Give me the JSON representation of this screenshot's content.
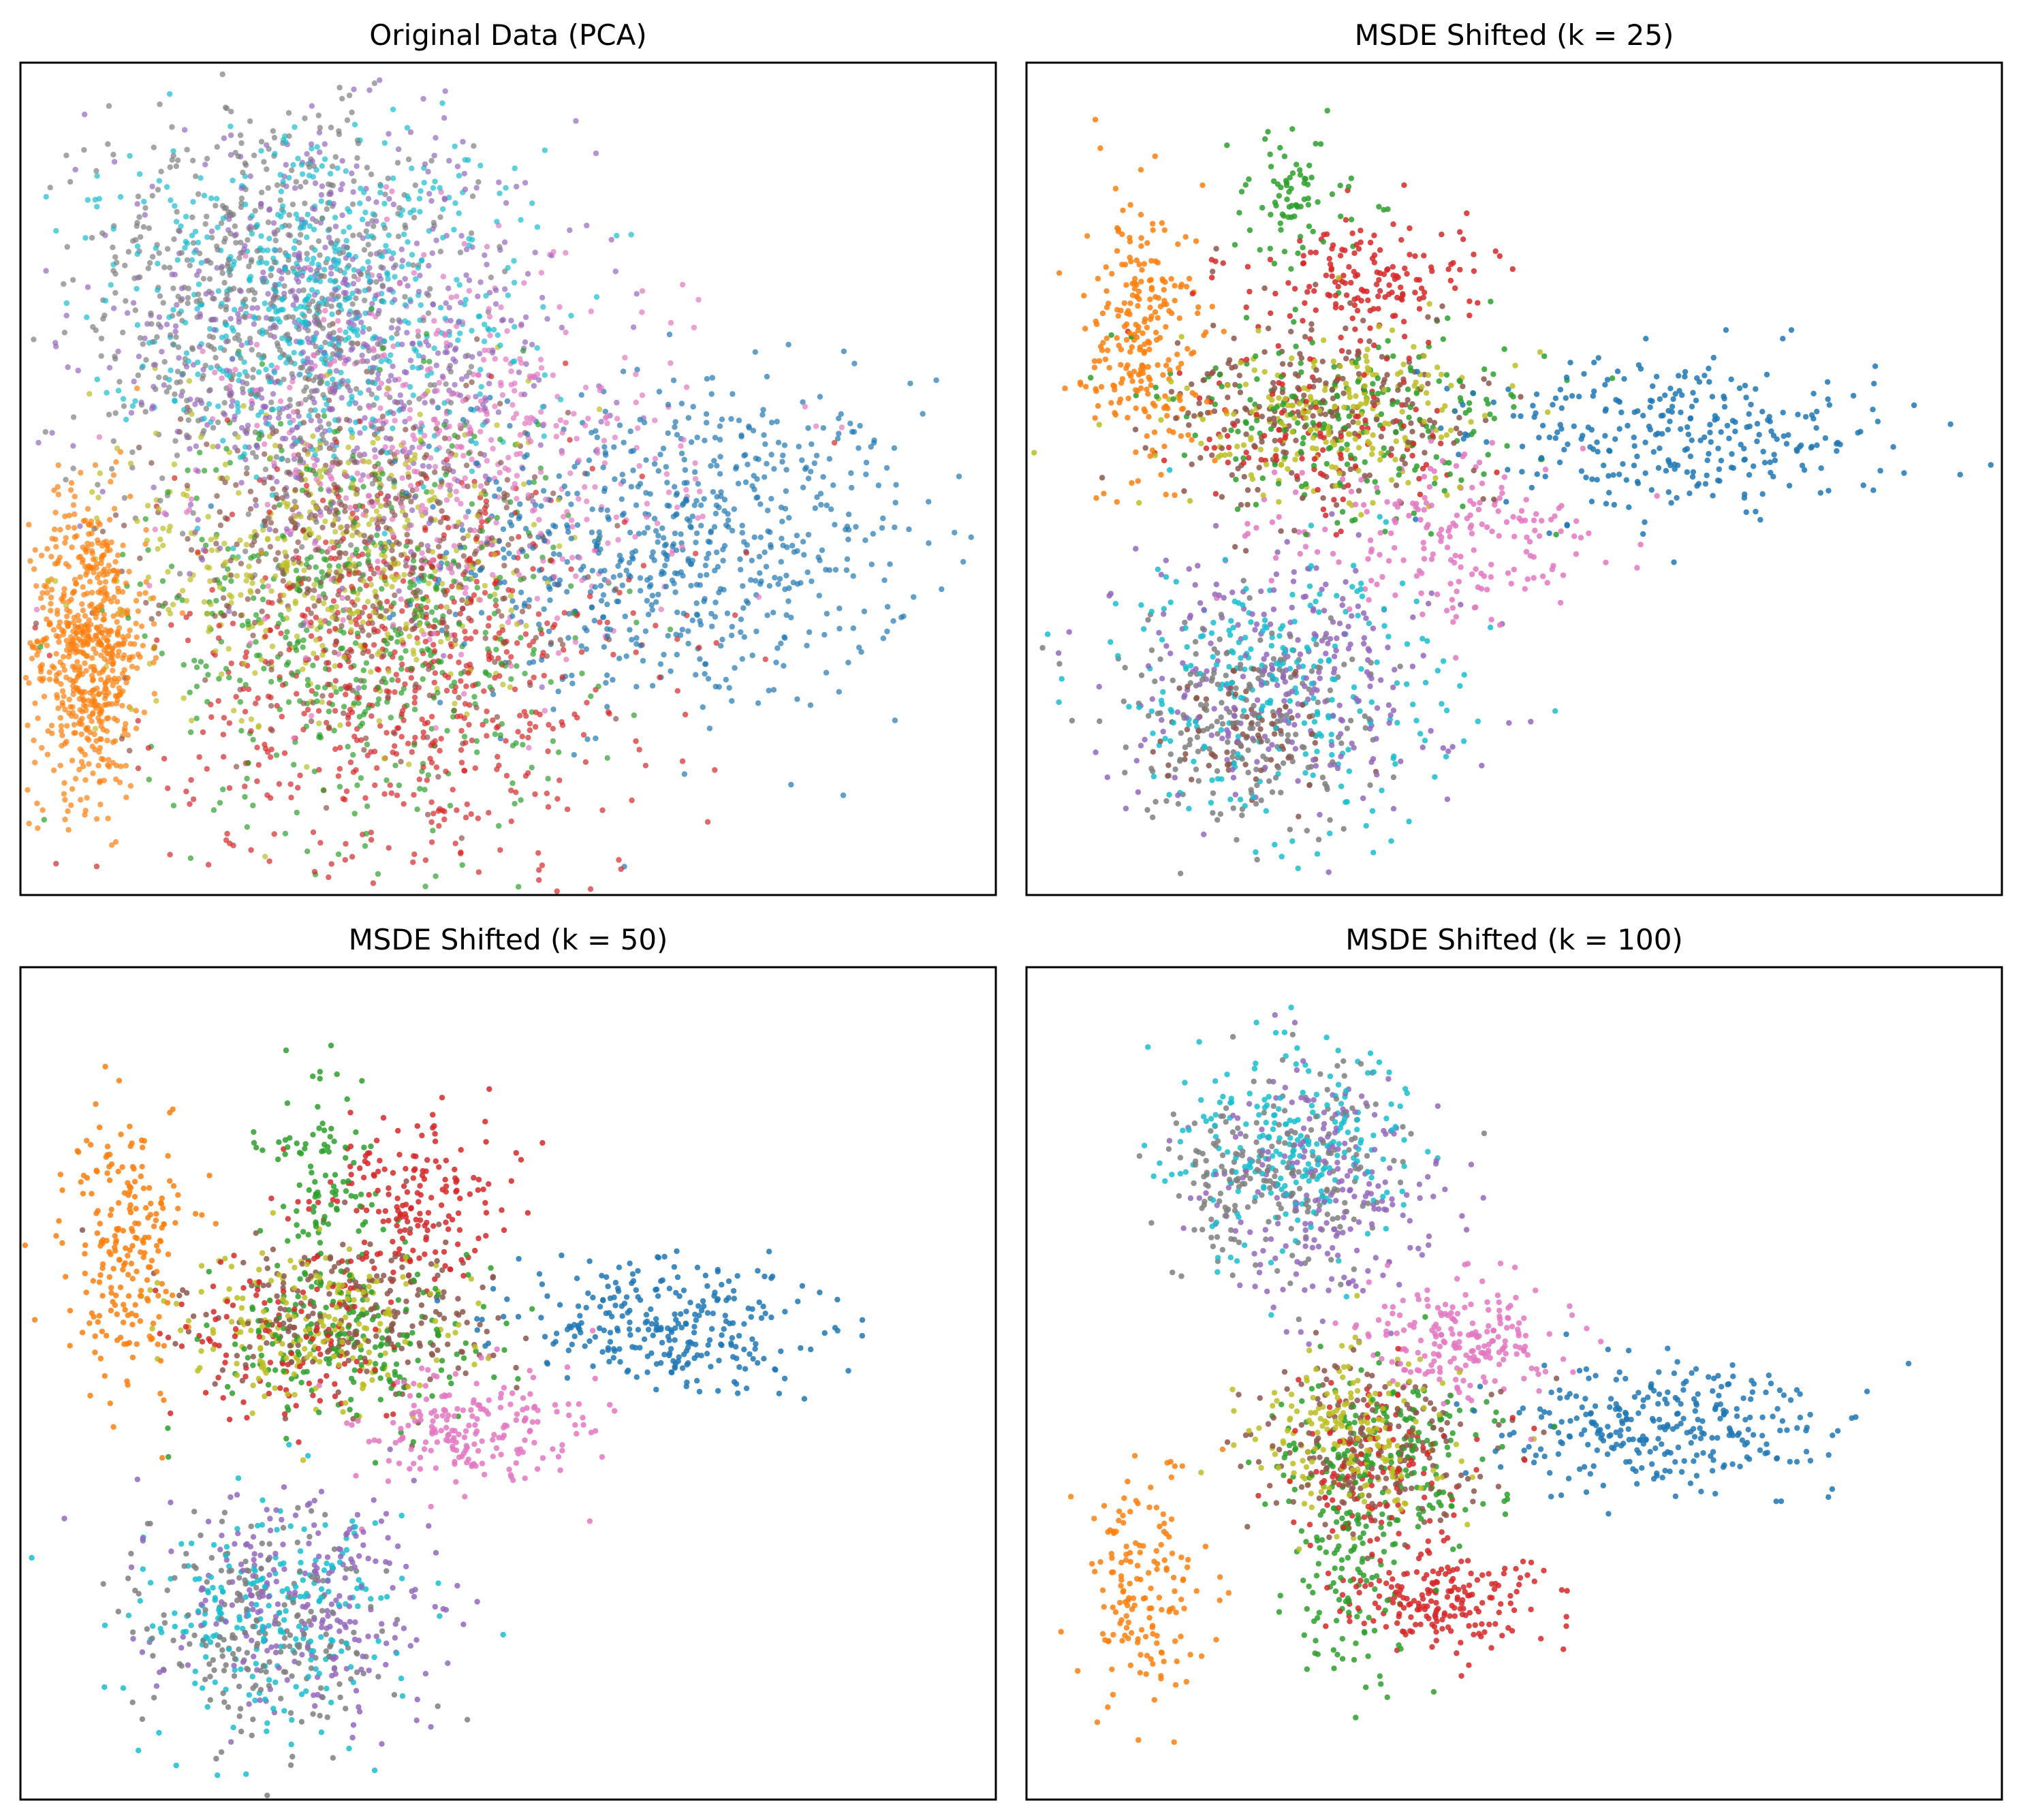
{
  "figure": {
    "background": "#ffffff",
    "frame_color": "#000000",
    "palette": [
      "#1f77b4",
      "#ff7f0e",
      "#2ca02c",
      "#d62728",
      "#9467bd",
      "#8c564b",
      "#e377c2",
      "#7f7f7f",
      "#bcbd22",
      "#17becf"
    ]
  },
  "chart_data": [
    {
      "type": "scatter",
      "title": "Original Data (PCA)",
      "xlabel": "",
      "ylabel": "",
      "ticks": "none",
      "grid": false,
      "legend": "none",
      "point_alpha": 0.7,
      "xlim": [
        0,
        1
      ],
      "ylim": [
        0,
        1
      ],
      "series": [
        {
          "color": "#1f77b4",
          "clusters": [
            {
              "cx": 0.68,
              "cy": 0.42,
              "sx": 0.12,
              "sy": 0.1,
              "n": 700
            }
          ]
        },
        {
          "color": "#ff7f0e",
          "clusters": [
            {
              "cx": 0.07,
              "cy": 0.3,
              "sx": 0.03,
              "sy": 0.09,
              "n": 650
            }
          ]
        },
        {
          "color": "#2ca02c",
          "clusters": [
            {
              "cx": 0.35,
              "cy": 0.33,
              "sx": 0.11,
              "sy": 0.13,
              "n": 500
            }
          ]
        },
        {
          "color": "#d62728",
          "clusters": [
            {
              "cx": 0.4,
              "cy": 0.26,
              "sx": 0.12,
              "sy": 0.13,
              "n": 650
            }
          ]
        },
        {
          "color": "#9467bd",
          "clusters": [
            {
              "cx": 0.32,
              "cy": 0.66,
              "sx": 0.13,
              "sy": 0.12,
              "n": 650
            }
          ]
        },
        {
          "color": "#8c564b",
          "clusters": [
            {
              "cx": 0.35,
              "cy": 0.42,
              "sx": 0.1,
              "sy": 0.1,
              "n": 450
            }
          ]
        },
        {
          "color": "#e377c2",
          "clusters": [
            {
              "cx": 0.45,
              "cy": 0.52,
              "sx": 0.12,
              "sy": 0.12,
              "n": 500
            }
          ]
        },
        {
          "color": "#7f7f7f",
          "clusters": [
            {
              "cx": 0.25,
              "cy": 0.72,
              "sx": 0.1,
              "sy": 0.12,
              "n": 650
            }
          ]
        },
        {
          "color": "#bcbd22",
          "clusters": [
            {
              "cx": 0.32,
              "cy": 0.4,
              "sx": 0.1,
              "sy": 0.1,
              "n": 450
            }
          ]
        },
        {
          "color": "#17becf",
          "clusters": [
            {
              "cx": 0.3,
              "cy": 0.72,
              "sx": 0.11,
              "sy": 0.1,
              "n": 600
            }
          ]
        }
      ]
    },
    {
      "type": "scatter",
      "title": "MSDE Shifted (k = 25)",
      "xlabel": "",
      "ylabel": "",
      "ticks": "none",
      "grid": false,
      "legend": "none",
      "point_alpha": 0.85,
      "xlim": [
        0,
        1
      ],
      "ylim": [
        0,
        1
      ],
      "series": [
        {
          "color": "#1f77b4",
          "clusters": [
            {
              "cx": 0.68,
              "cy": 0.55,
              "sx": 0.11,
              "sy": 0.05,
              "n": 300
            }
          ]
        },
        {
          "color": "#ff7f0e",
          "clusters": [
            {
              "cx": 0.12,
              "cy": 0.67,
              "sx": 0.03,
              "sy": 0.08,
              "n": 250
            }
          ]
        },
        {
          "color": "#2ca02c",
          "clusters": [
            {
              "cx": 0.28,
              "cy": 0.84,
              "sx": 0.03,
              "sy": 0.04,
              "n": 80
            },
            {
              "cx": 0.33,
              "cy": 0.57,
              "sx": 0.09,
              "sy": 0.06,
              "n": 220
            }
          ]
        },
        {
          "color": "#d62728",
          "clusters": [
            {
              "cx": 0.35,
              "cy": 0.74,
              "sx": 0.06,
              "sy": 0.04,
              "n": 160
            },
            {
              "cx": 0.3,
              "cy": 0.56,
              "sx": 0.08,
              "sy": 0.05,
              "n": 120
            }
          ]
        },
        {
          "color": "#9467bd",
          "clusters": [
            {
              "cx": 0.27,
              "cy": 0.26,
              "sx": 0.08,
              "sy": 0.08,
              "n": 260
            }
          ]
        },
        {
          "color": "#8c564b",
          "clusters": [
            {
              "cx": 0.3,
              "cy": 0.58,
              "sx": 0.09,
              "sy": 0.06,
              "n": 220
            },
            {
              "cx": 0.22,
              "cy": 0.2,
              "sx": 0.05,
              "sy": 0.04,
              "n": 80
            }
          ]
        },
        {
          "color": "#e377c2",
          "clusters": [
            {
              "cx": 0.43,
              "cy": 0.43,
              "sx": 0.08,
              "sy": 0.05,
              "n": 200
            }
          ]
        },
        {
          "color": "#7f7f7f",
          "clusters": [
            {
              "cx": 0.22,
              "cy": 0.2,
              "sx": 0.07,
              "sy": 0.07,
              "n": 220
            }
          ]
        },
        {
          "color": "#bcbd22",
          "clusters": [
            {
              "cx": 0.3,
              "cy": 0.57,
              "sx": 0.08,
              "sy": 0.05,
              "n": 220
            }
          ]
        },
        {
          "color": "#17becf",
          "clusters": [
            {
              "cx": 0.26,
              "cy": 0.24,
              "sx": 0.09,
              "sy": 0.08,
              "n": 260
            }
          ]
        }
      ]
    },
    {
      "type": "scatter",
      "title": "MSDE Shifted (k = 50)",
      "xlabel": "",
      "ylabel": "",
      "ticks": "none",
      "grid": false,
      "legend": "none",
      "point_alpha": 0.85,
      "xlim": [
        0,
        1
      ],
      "ylim": [
        0,
        1
      ],
      "series": [
        {
          "color": "#1f77b4",
          "clusters": [
            {
              "cx": 0.66,
              "cy": 0.57,
              "sx": 0.08,
              "sy": 0.04,
              "n": 280
            }
          ]
        },
        {
          "color": "#ff7f0e",
          "clusters": [
            {
              "cx": 0.11,
              "cy": 0.66,
              "sx": 0.03,
              "sy": 0.08,
              "n": 220
            }
          ]
        },
        {
          "color": "#2ca02c",
          "clusters": [
            {
              "cx": 0.31,
              "cy": 0.74,
              "sx": 0.03,
              "sy": 0.06,
              "n": 100
            },
            {
              "cx": 0.33,
              "cy": 0.55,
              "sx": 0.07,
              "sy": 0.05,
              "n": 200
            }
          ]
        },
        {
          "color": "#d62728",
          "clusters": [
            {
              "cx": 0.4,
              "cy": 0.72,
              "sx": 0.05,
              "sy": 0.05,
              "n": 180
            },
            {
              "cx": 0.28,
              "cy": 0.56,
              "sx": 0.06,
              "sy": 0.05,
              "n": 120
            }
          ]
        },
        {
          "color": "#9467bd",
          "clusters": [
            {
              "cx": 0.3,
              "cy": 0.24,
              "sx": 0.07,
              "sy": 0.07,
              "n": 240
            }
          ]
        },
        {
          "color": "#8c564b",
          "clusters": [
            {
              "cx": 0.34,
              "cy": 0.58,
              "sx": 0.08,
              "sy": 0.05,
              "n": 220
            }
          ]
        },
        {
          "color": "#e377c2",
          "clusters": [
            {
              "cx": 0.46,
              "cy": 0.44,
              "sx": 0.06,
              "sy": 0.04,
              "n": 200
            }
          ]
        },
        {
          "color": "#7f7f7f",
          "clusters": [
            {
              "cx": 0.24,
              "cy": 0.2,
              "sx": 0.07,
              "sy": 0.07,
              "n": 220
            }
          ]
        },
        {
          "color": "#bcbd22",
          "clusters": [
            {
              "cx": 0.31,
              "cy": 0.56,
              "sx": 0.07,
              "sy": 0.05,
              "n": 220
            }
          ]
        },
        {
          "color": "#17becf",
          "clusters": [
            {
              "cx": 0.26,
              "cy": 0.22,
              "sx": 0.07,
              "sy": 0.07,
              "n": 230
            }
          ]
        }
      ]
    },
    {
      "type": "scatter",
      "title": "MSDE Shifted (k = 100)",
      "xlabel": "",
      "ylabel": "",
      "ticks": "none",
      "grid": false,
      "legend": "none",
      "point_alpha": 0.85,
      "xlim": [
        0,
        1
      ],
      "ylim": [
        0,
        1
      ],
      "series": [
        {
          "color": "#1f77b4",
          "clusters": [
            {
              "cx": 0.66,
              "cy": 0.45,
              "sx": 0.09,
              "sy": 0.04,
              "n": 300
            }
          ]
        },
        {
          "color": "#ff7f0e",
          "clusters": [
            {
              "cx": 0.12,
              "cy": 0.25,
              "sx": 0.03,
              "sy": 0.07,
              "n": 160
            }
          ]
        },
        {
          "color": "#2ca02c",
          "clusters": [
            {
              "cx": 0.33,
              "cy": 0.27,
              "sx": 0.03,
              "sy": 0.08,
              "n": 130
            },
            {
              "cx": 0.37,
              "cy": 0.42,
              "sx": 0.06,
              "sy": 0.05,
              "n": 170
            }
          ]
        },
        {
          "color": "#d62728",
          "clusters": [
            {
              "cx": 0.42,
              "cy": 0.24,
              "sx": 0.05,
              "sy": 0.03,
              "n": 200
            },
            {
              "cx": 0.36,
              "cy": 0.4,
              "sx": 0.05,
              "sy": 0.05,
              "n": 120
            }
          ]
        },
        {
          "color": "#9467bd",
          "clusters": [
            {
              "cx": 0.3,
              "cy": 0.73,
              "sx": 0.06,
              "sy": 0.07,
              "n": 220
            }
          ]
        },
        {
          "color": "#8c564b",
          "clusters": [
            {
              "cx": 0.36,
              "cy": 0.42,
              "sx": 0.06,
              "sy": 0.05,
              "n": 200
            }
          ]
        },
        {
          "color": "#e377c2",
          "clusters": [
            {
              "cx": 0.45,
              "cy": 0.55,
              "sx": 0.05,
              "sy": 0.04,
              "n": 200
            }
          ]
        },
        {
          "color": "#7f7f7f",
          "clusters": [
            {
              "cx": 0.25,
              "cy": 0.75,
              "sx": 0.06,
              "sy": 0.06,
              "n": 220
            }
          ]
        },
        {
          "color": "#bcbd22",
          "clusters": [
            {
              "cx": 0.33,
              "cy": 0.44,
              "sx": 0.05,
              "sy": 0.05,
              "n": 200
            }
          ]
        },
        {
          "color": "#17becf",
          "clusters": [
            {
              "cx": 0.28,
              "cy": 0.78,
              "sx": 0.06,
              "sy": 0.06,
              "n": 230
            }
          ]
        }
      ]
    }
  ]
}
